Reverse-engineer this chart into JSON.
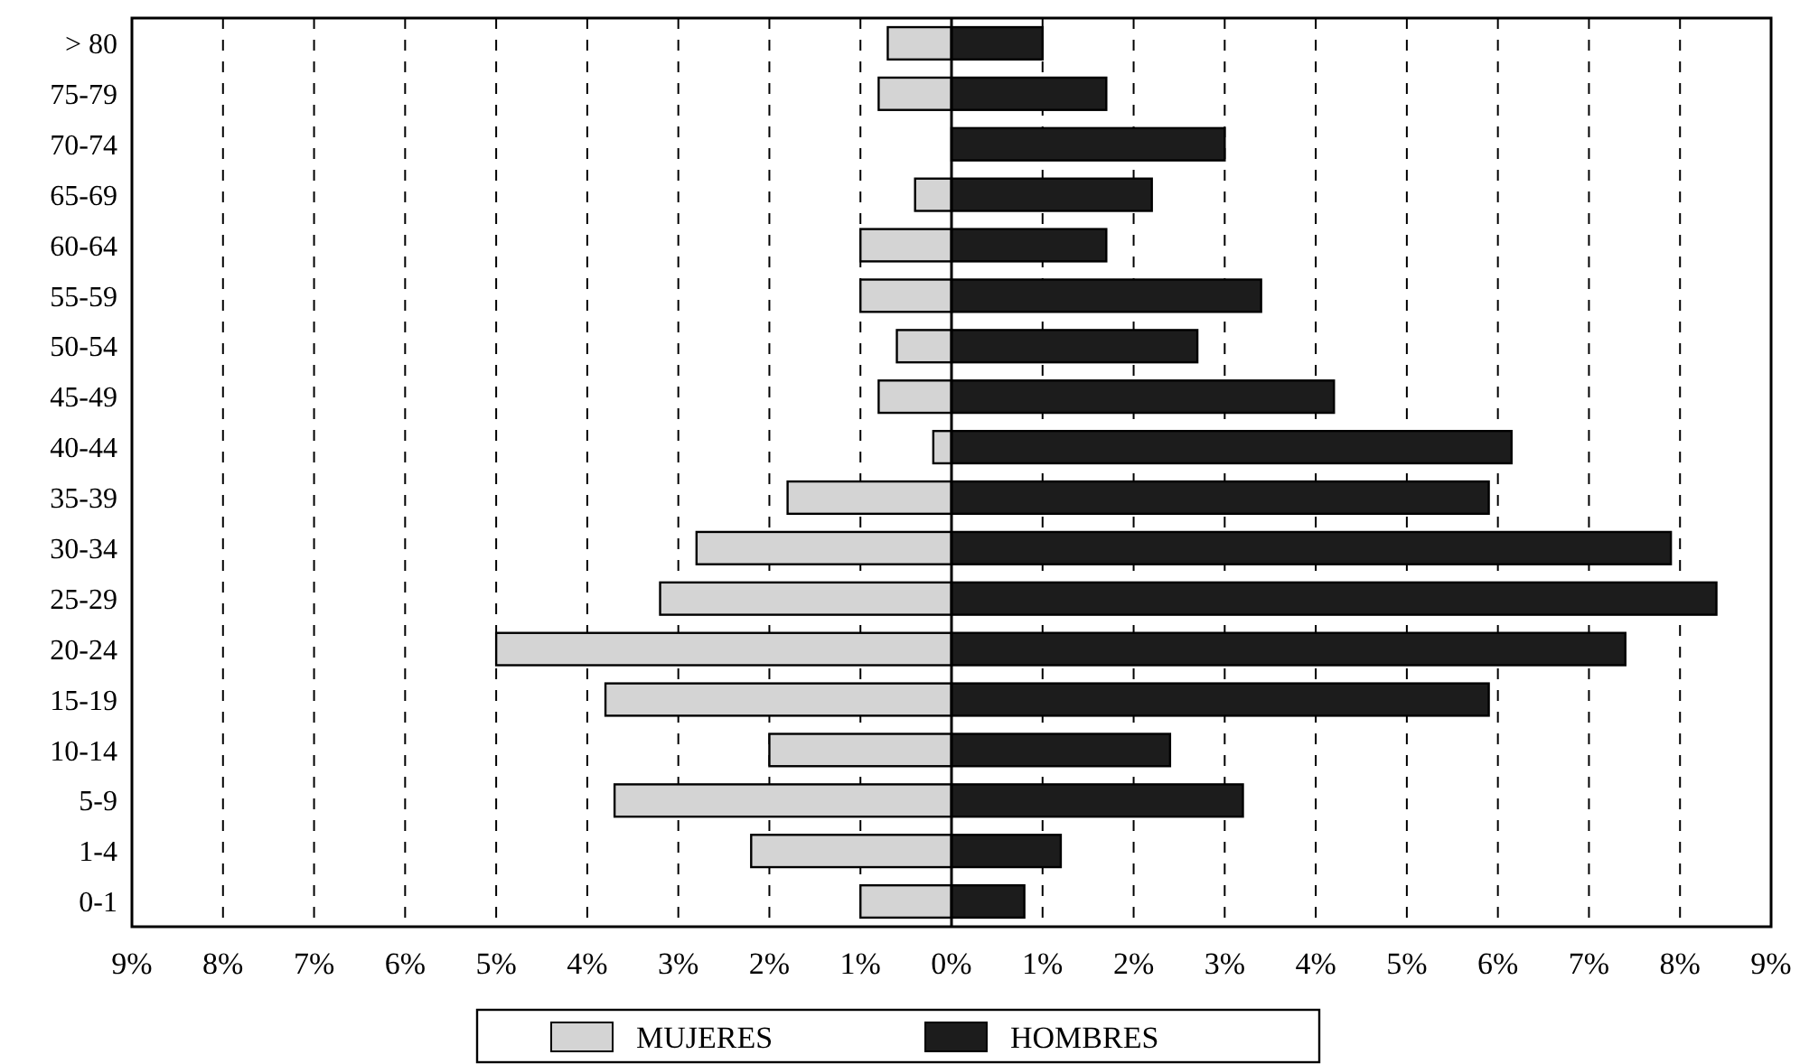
{
  "chart_data": {
    "type": "bar",
    "orientation": "horizontal",
    "stacked": true,
    "categories": [
      "> 80",
      "75-79",
      "70-74",
      "65-69",
      "60-64",
      "55-59",
      "50-54",
      "45-49",
      "40-44",
      "35-39",
      "30-34",
      "25-29",
      "20-24",
      "15-19",
      "10-14",
      "5-9",
      "1-4",
      "0-1"
    ],
    "series": [
      {
        "name": "MUJERES",
        "color": "#d4d4d4",
        "values": [
          -0.7,
          -0.8,
          0,
          -0.4,
          -1.0,
          -1.0,
          -0.6,
          -0.8,
          -0.2,
          -1.8,
          -2.8,
          -3.2,
          -5.0,
          -3.8,
          -2.0,
          -3.7,
          -2.2,
          -1.0
        ]
      },
      {
        "name": "HOMBRES",
        "color": "#1c1c1c",
        "values": [
          1.0,
          1.7,
          3.0,
          2.2,
          1.7,
          3.4,
          2.7,
          4.2,
          6.15,
          5.9,
          7.9,
          8.4,
          7.4,
          5.9,
          2.4,
          3.2,
          1.2,
          0.8
        ]
      }
    ],
    "xlim": [
      -9,
      9
    ],
    "xticks": [
      {
        "value": -9,
        "label": "9%"
      },
      {
        "value": -8,
        "label": "8%"
      },
      {
        "value": -7,
        "label": "7%"
      },
      {
        "value": -6,
        "label": "6%"
      },
      {
        "value": -5,
        "label": "5%"
      },
      {
        "value": -4,
        "label": "4%"
      },
      {
        "value": -3,
        "label": "3%"
      },
      {
        "value": -2,
        "label": "2%"
      },
      {
        "value": -1,
        "label": "1%"
      },
      {
        "value": 0,
        "label": "0%"
      },
      {
        "value": 1,
        "label": "1%"
      },
      {
        "value": 2,
        "label": "2%"
      },
      {
        "value": 3,
        "label": "3%"
      },
      {
        "value": 4,
        "label": "4%"
      },
      {
        "value": 5,
        "label": "5%"
      },
      {
        "value": 6,
        "label": "6%"
      },
      {
        "value": 7,
        "label": "7%"
      },
      {
        "value": 8,
        "label": "8%"
      },
      {
        "value": 9,
        "label": "9%"
      }
    ],
    "grid": "x",
    "legend": "bottom"
  }
}
